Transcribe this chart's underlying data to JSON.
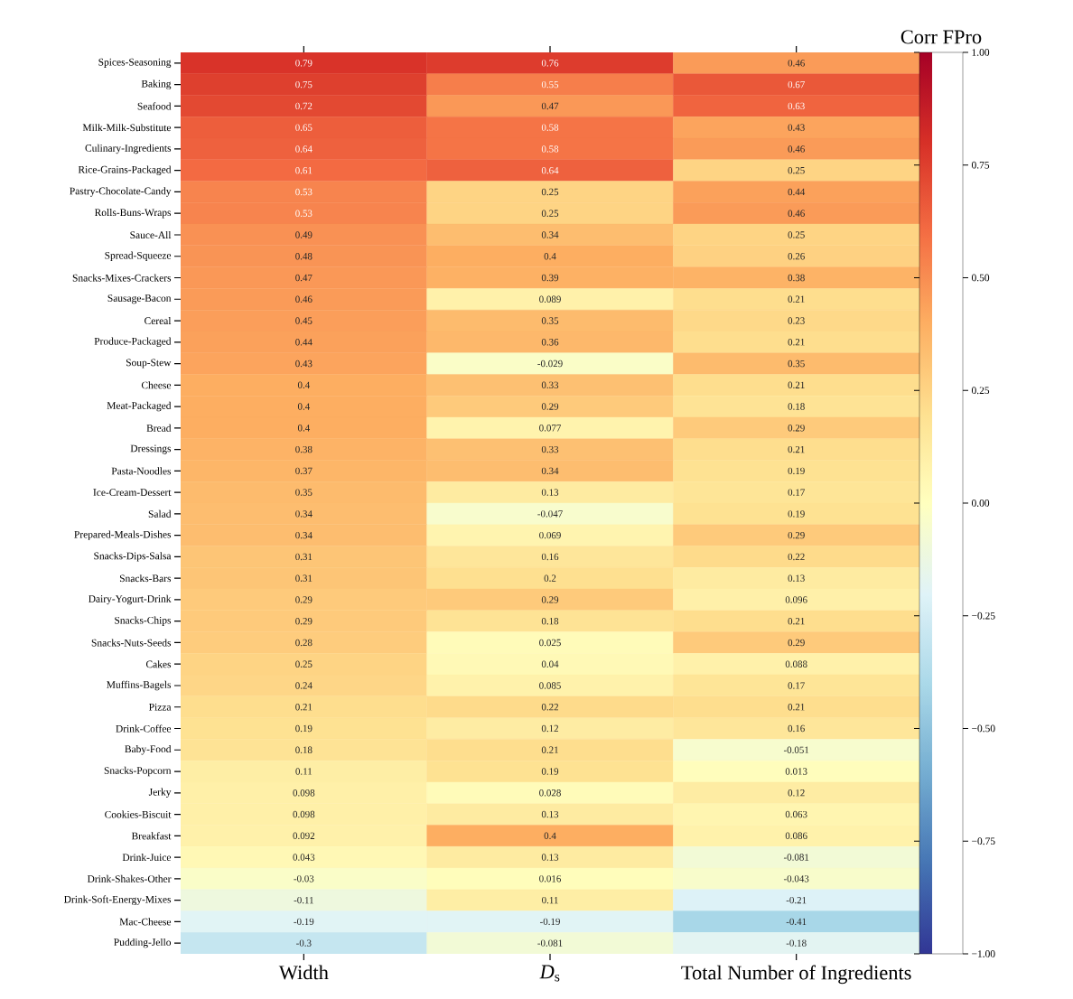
{
  "chart_data": {
    "type": "heatmap",
    "clabel": "Corr FPro",
    "categories": [
      "Width",
      "*D*$_{s}$",
      "Total Number of Ingredients"
    ],
    "y_categories": [
      "Spices-Seasoning",
      "Baking",
      "Seafood",
      "Milk-Milk-Substitute",
      "Culinary-Ingredients",
      "Rice-Grains-Packaged",
      "Pastry-Chocolate-Candy",
      "Rolls-Buns-Wraps",
      "Sauce-All",
      "Spread-Squeeze",
      "Snacks-Mixes-Crackers",
      "Sausage-Bacon",
      "Cereal",
      "Produce-Packaged",
      "Soup-Stew",
      "Cheese",
      "Meat-Packaged",
      "Bread",
      "Dressings",
      "Pasta-Noodles",
      "Ice-Cream-Dessert",
      "Salad",
      "Prepared-Meals-Dishes",
      "Snacks-Dips-Salsa",
      "Snacks-Bars",
      "Dairy-Yogurt-Drink",
      "Snacks-Chips",
      "Snacks-Nuts-Seeds",
      "Cakes",
      "Muffins-Bagels",
      "Pizza",
      "Drink-Coffee",
      "Baby-Food",
      "Snacks-Popcorn",
      "Jerky",
      "Cookies-Biscuit",
      "Breakfast",
      "Drink-Juice",
      "Drink-Shakes-Other",
      "Drink-Soft-Energy-Mixes",
      "Mac-Cheese",
      "Pudding-Jello"
    ],
    "cells": [
      [
        0.79,
        0.76,
        0.46
      ],
      [
        0.75,
        0.55,
        0.67
      ],
      [
        0.72,
        0.47,
        0.63
      ],
      [
        0.65,
        0.58,
        0.43
      ],
      [
        0.64,
        0.58,
        0.46
      ],
      [
        0.61,
        0.64,
        0.25
      ],
      [
        0.53,
        0.25,
        0.44
      ],
      [
        0.53,
        0.25,
        0.46
      ],
      [
        0.49,
        0.34,
        0.25
      ],
      [
        0.48,
        0.4,
        0.26
      ],
      [
        0.47,
        0.39,
        0.38
      ],
      [
        0.46,
        0.089,
        0.21
      ],
      [
        0.45,
        0.35,
        0.23
      ],
      [
        0.44,
        0.36,
        0.21
      ],
      [
        0.43,
        -0.029,
        0.35
      ],
      [
        0.4,
        0.33,
        0.21
      ],
      [
        0.4,
        0.29,
        0.18
      ],
      [
        0.4,
        0.077,
        0.29
      ],
      [
        0.38,
        0.33,
        0.21
      ],
      [
        0.37,
        0.34,
        0.19
      ],
      [
        0.35,
        0.13,
        0.17
      ],
      [
        0.34,
        -0.047,
        0.19
      ],
      [
        0.34,
        0.069,
        0.29
      ],
      [
        0.31,
        0.16,
        0.22
      ],
      [
        0.31,
        0.2,
        0.13
      ],
      [
        0.29,
        0.29,
        0.096
      ],
      [
        0.29,
        0.18,
        0.21
      ],
      [
        0.28,
        0.025,
        0.29
      ],
      [
        0.25,
        0.04,
        0.088
      ],
      [
        0.24,
        0.085,
        0.17
      ],
      [
        0.21,
        0.22,
        0.21
      ],
      [
        0.19,
        0.12,
        0.16
      ],
      [
        0.18,
        0.21,
        -0.051
      ],
      [
        0.11,
        0.19,
        0.013
      ],
      [
        0.098,
        0.028,
        0.12
      ],
      [
        0.098,
        0.13,
        0.063
      ],
      [
        0.092,
        0.4,
        0.086
      ],
      [
        0.043,
        0.13,
        -0.081
      ],
      [
        -0.03,
        0.016,
        -0.043
      ],
      [
        -0.11,
        0.11,
        -0.21
      ],
      [
        -0.19,
        -0.19,
        -0.41
      ],
      [
        -0.3,
        -0.081,
        -0.18
      ]
    ],
    "data_labels": true,
    "clim": [
      -1,
      1
    ],
    "cticks": [
      {
        "value": -1,
        "label": "−1.00"
      },
      {
        "value": -0.75,
        "label": "−0.75"
      },
      {
        "value": -0.5,
        "label": "−0.50"
      },
      {
        "value": -0.25,
        "label": "−0.25"
      },
      {
        "value": 0,
        "label": "0.00"
      },
      {
        "value": 0.25,
        "label": "0.25"
      },
      {
        "value": 0.5,
        "label": "0.50"
      },
      {
        "value": 0.75,
        "label": "0.75"
      },
      {
        "value": 1,
        "label": "1.00"
      }
    ]
  }
}
